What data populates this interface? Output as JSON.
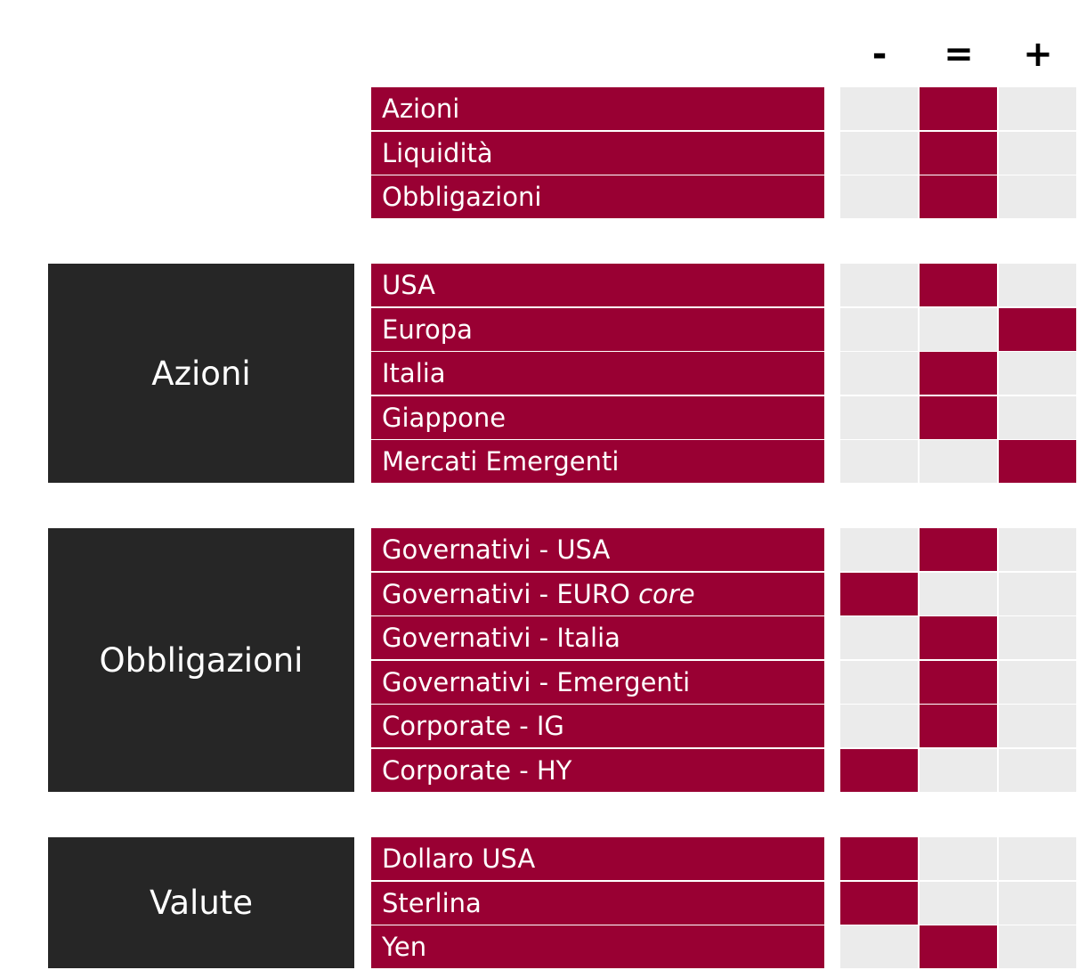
{
  "header": {
    "minus": "-",
    "equal": "=",
    "plus": "+"
  },
  "colors": {
    "accent": "#990033",
    "empty": "#ebebeb",
    "group": "#262626"
  },
  "groups": [
    {
      "label": "",
      "rows": [
        {
          "label": "Azioni",
          "selected": "="
        },
        {
          "label": "Liquidità",
          "selected": "="
        },
        {
          "label": "Obbligazioni",
          "selected": "="
        }
      ]
    },
    {
      "label": "Azioni",
      "rows": [
        {
          "label": "USA",
          "selected": "="
        },
        {
          "label": "Europa",
          "selected": "+"
        },
        {
          "label": "Italia",
          "selected": "="
        },
        {
          "label": "Giappone",
          "selected": "="
        },
        {
          "label": "Mercati Emergenti",
          "selected": "+"
        }
      ]
    },
    {
      "label": "Obbligazioni",
      "rows": [
        {
          "label": "Governativi - USA",
          "selected": "="
        },
        {
          "label": "Governativi - EURO",
          "label_italic": "core",
          "selected": "-"
        },
        {
          "label": "Governativi - Italia",
          "selected": "="
        },
        {
          "label": "Governativi - Emergenti",
          "selected": "="
        },
        {
          "label": "Corporate - IG",
          "selected": "="
        },
        {
          "label": "Corporate - HY",
          "selected": "-"
        }
      ]
    },
    {
      "label": "Valute",
      "rows": [
        {
          "label": "Dollaro USA",
          "selected": "-"
        },
        {
          "label": "Sterlina",
          "selected": "-"
        },
        {
          "label": "Yen",
          "selected": "="
        }
      ]
    }
  ]
}
